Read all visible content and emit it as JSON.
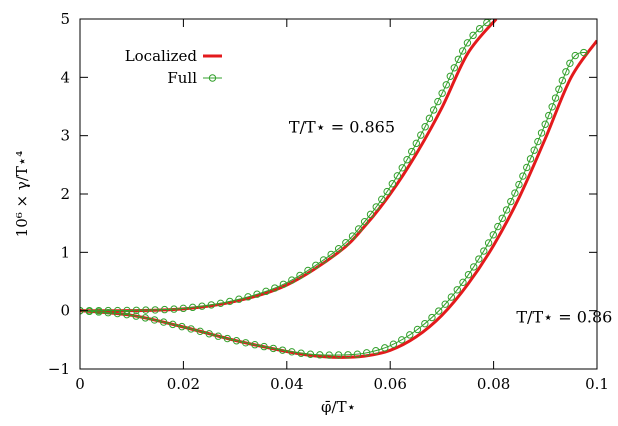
{
  "chart_data": {
    "type": "line",
    "title": "",
    "xlabel": "φ̄/T⋆",
    "ylabel": "10⁶ × γ/T⋆⁴",
    "xlim": [
      0,
      0.1
    ],
    "ylim": [
      -1,
      5
    ],
    "xticks": [
      0,
      0.02,
      0.04,
      0.06,
      0.08,
      0.1
    ],
    "xtick_labels": [
      "0",
      "0.02",
      "0.04",
      "0.06",
      "0.08",
      "0.1"
    ],
    "yticks": [
      -1,
      0,
      1,
      2,
      3,
      4,
      5
    ],
    "ytick_labels": [
      "−1",
      "0",
      "1",
      "2",
      "3",
      "4",
      "5"
    ],
    "grid": false,
    "legend_position": "top-left",
    "legend": [
      {
        "label": "Localized",
        "color": "#e31a1c",
        "style": "thick-line"
      },
      {
        "label": "Full",
        "color": "#33a02c",
        "style": "line-circle"
      }
    ],
    "annotations": [
      {
        "text": "T/T⋆ = 0.865",
        "x": 0.0435,
        "y": 3.0
      },
      {
        "text": "T/T⋆ = 0.86",
        "x": 0.0875,
        "y": -0.25
      }
    ],
    "series": [
      {
        "name": "Localized",
        "curves": [
          {
            "temperature": "0.865",
            "points": [
              [
                0,
                0
              ],
              [
                0.01,
                0.001
              ],
              [
                0.02,
                0.03
              ],
              [
                0.03,
                0.16
              ],
              [
                0.04,
                0.44
              ],
              [
                0.05,
                1.0
              ],
              [
                0.055,
                1.44
              ],
              [
                0.06,
                2.0
              ],
              [
                0.065,
                2.68
              ],
              [
                0.07,
                3.48
              ],
              [
                0.075,
                4.41
              ],
              [
                0.0805,
                5.0
              ]
            ]
          },
          {
            "temperature": "0.86",
            "points": [
              [
                0,
                0
              ],
              [
                0.01,
                -0.08
              ],
              [
                0.02,
                -0.28
              ],
              [
                0.03,
                -0.51
              ],
              [
                0.04,
                -0.7
              ],
              [
                0.045,
                -0.77
              ],
              [
                0.05,
                -0.8
              ],
              [
                0.055,
                -0.78
              ],
              [
                0.06,
                -0.68
              ],
              [
                0.065,
                -0.45
              ],
              [
                0.07,
                -0.08
              ],
              [
                0.075,
                0.45
              ],
              [
                0.08,
                1.12
              ],
              [
                0.085,
                1.95
              ],
              [
                0.09,
                2.95
              ],
              [
                0.095,
                4.0
              ],
              [
                0.1,
                4.63
              ]
            ]
          }
        ]
      },
      {
        "name": "Full",
        "curves": [
          {
            "temperature": "0.865",
            "points": [
              [
                0,
                0
              ],
              [
                0.01,
                0.005
              ],
              [
                0.02,
                0.04
              ],
              [
                0.03,
                0.18
              ],
              [
                0.04,
                0.48
              ],
              [
                0.05,
                1.06
              ],
              [
                0.055,
                1.52
              ],
              [
                0.06,
                2.12
              ],
              [
                0.065,
                2.86
              ],
              [
                0.07,
                3.72
              ],
              [
                0.075,
                4.6
              ],
              [
                0.0795,
                5.0
              ]
            ]
          },
          {
            "temperature": "0.86",
            "points": [
              [
                0,
                0
              ],
              [
                0.01,
                -0.08
              ],
              [
                0.02,
                -0.28
              ],
              [
                0.03,
                -0.51
              ],
              [
                0.04,
                -0.69
              ],
              [
                0.045,
                -0.75
              ],
              [
                0.05,
                -0.76
              ],
              [
                0.055,
                -0.73
              ],
              [
                0.06,
                -0.6
              ],
              [
                0.065,
                -0.34
              ],
              [
                0.07,
                0.05
              ],
              [
                0.075,
                0.6
              ],
              [
                0.08,
                1.31
              ],
              [
                0.085,
                2.18
              ],
              [
                0.09,
                3.2
              ],
              [
                0.095,
                4.28
              ],
              [
                0.098,
                4.43
              ]
            ]
          }
        ]
      }
    ]
  }
}
